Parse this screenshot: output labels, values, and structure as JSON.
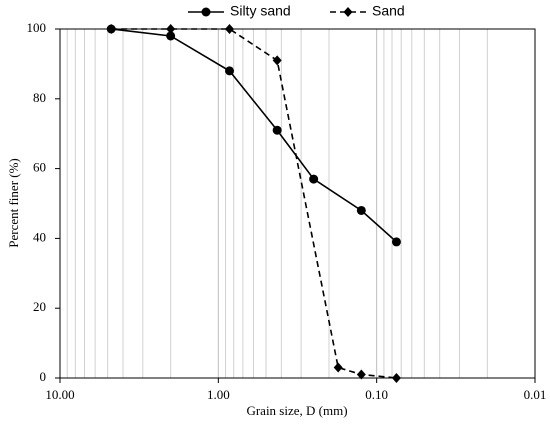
{
  "chart_data": {
    "type": "line",
    "x_label": "Grain size, D (mm)",
    "y_label": "Percent finer (%)",
    "series": [
      {
        "name": "Silty sand",
        "color": "#000000",
        "marker": "circle",
        "dash": "solid",
        "x": [
          4.75,
          2.0,
          0.85,
          0.425,
          0.25,
          0.125,
          0.075
        ],
        "values": [
          100,
          98,
          88,
          71,
          57,
          48,
          39
        ]
      },
      {
        "name": "Sand",
        "color": "#000000",
        "marker": "diamond",
        "dash": "dashed",
        "x": [
          4.75,
          2.0,
          0.85,
          0.425,
          0.175,
          0.125,
          0.075
        ],
        "values": [
          100,
          100,
          100,
          91,
          3,
          1,
          0
        ]
      }
    ],
    "xscale": "log",
    "xlim": [
      10,
      0.01
    ],
    "xticks": [
      {
        "value": 10,
        "label": "10.00"
      },
      {
        "value": 1,
        "label": "1.00"
      },
      {
        "value": 0.1,
        "label": "0.10"
      },
      {
        "value": 0.01,
        "label": "0.01"
      }
    ],
    "ylim": [
      0,
      100
    ],
    "yticks": [
      0,
      20,
      40,
      60,
      80,
      100
    ],
    "grid": "x-minor",
    "legend": "top"
  }
}
